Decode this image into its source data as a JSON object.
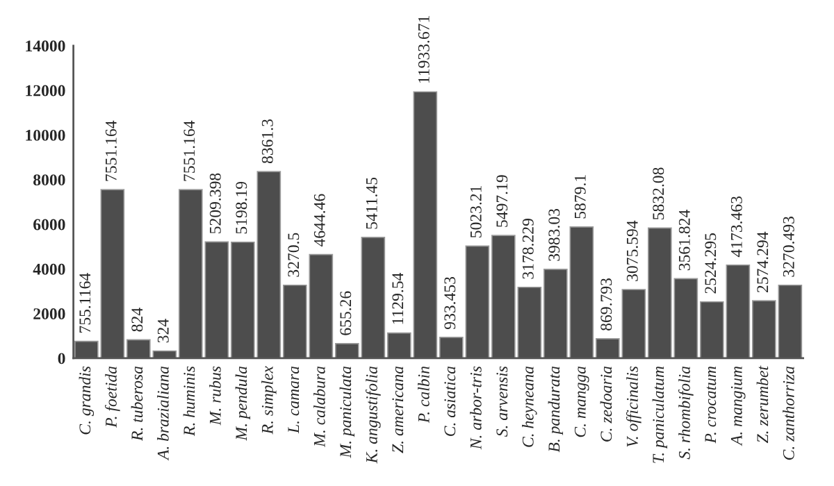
{
  "chart_data": {
    "type": "bar",
    "categories": [
      "C. grandis",
      "P. foetida",
      "R. tuberosa",
      "A. brazialiana",
      "R. huminis",
      "M. rubus",
      "M. pendula",
      "R. simplex",
      "L. camara",
      "M. calabura",
      "M. paniculata",
      "K. angustifolia",
      "Z. americana",
      "P. calbin",
      "C. asiatica",
      "N. arbor-tris",
      "S. arvensis",
      "C. heyneana",
      "B. pandurata",
      "C. mangga",
      "C. zedoaria",
      "V. officinalis",
      "T. paniculatum",
      "S. rhombifolia",
      "P. crocatum",
      "A. mangium",
      "Z. zerumbet",
      "C. zanthorriza"
    ],
    "values": [
      755.1164,
      7551.164,
      824,
      324,
      7551.164,
      5209.398,
      5198.19,
      8361.3,
      3270.5,
      4644.46,
      655.26,
      5411.45,
      1129.54,
      11933.671,
      933.453,
      5023.21,
      5497.19,
      3178.229,
      3983.03,
      5879.1,
      869.793,
      3075.594,
      5832.08,
      3561.824,
      2524.295,
      4173.463,
      2574.294,
      3270.493
    ],
    "value_labels": [
      "755.1164",
      "7551.164",
      "824",
      "324",
      "7551.164",
      "5209.398",
      "5198.19",
      "8361.3",
      "3270.5",
      "4644.46",
      "655.26",
      "5411.45",
      "1129.54",
      "11933.671",
      "933.453",
      "5023.21",
      "5497.19",
      "3178.229",
      "3983.03",
      "5879.1",
      "869.793",
      "3075.594",
      "5832.08",
      "3561.824",
      "2524.295",
      "4173.463",
      "2574.294",
      "3270.493"
    ],
    "color": "#4d4d4d",
    "ylim": [
      0,
      14000
    ],
    "yticks": [
      0,
      2000,
      4000,
      6000,
      8000,
      10000,
      12000,
      14000
    ],
    "grid": false,
    "legend": false
  }
}
